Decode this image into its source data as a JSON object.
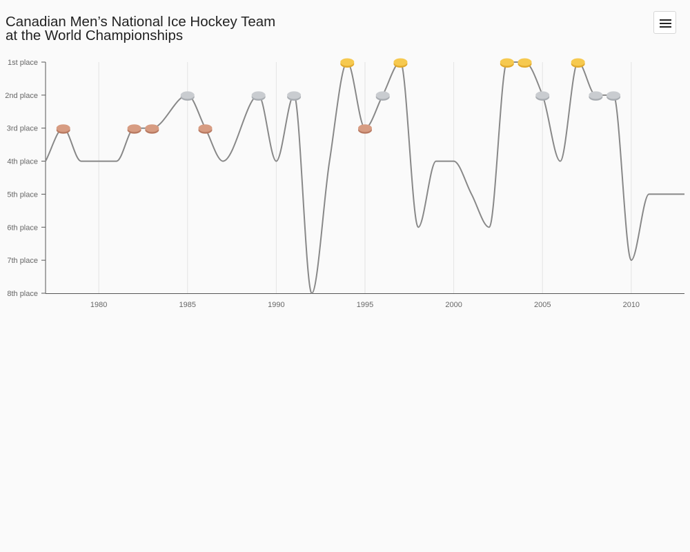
{
  "title_lines": [
    "Canadian Men’s National Ice Hockey Team",
    "at the World Championships"
  ],
  "menu": {
    "icon": "hamburger-menu-icon"
  },
  "colors": {
    "line": "#888888",
    "gold": "#f6c94f",
    "gold_edge": "#e2aa2c",
    "silver": "#c9ccd0",
    "silver_edge": "#a9adb2",
    "bronze": "#d79c82",
    "bronze_edge": "#b97a62",
    "grid": "#e3e3e3",
    "axis": "#555555"
  },
  "chart_data": {
    "type": "line",
    "title": "Canadian Men’s National Ice Hockey Team at the World Championships",
    "y_labels": [
      "1st place",
      "2nd place",
      "3rd place",
      "4th place",
      "5th place",
      "6th place",
      "7th place",
      "8th place"
    ],
    "x_ticks": [
      "1980",
      "1985",
      "1990",
      "1995",
      "2000",
      "2005",
      "2010"
    ],
    "x_tick_values": [
      1980,
      1985,
      1990,
      1995,
      2000,
      2005,
      2010
    ],
    "xlim": [
      1977,
      2013
    ],
    "ylim": [
      1,
      8
    ],
    "grid_x": true,
    "series": [
      {
        "points": [
          [
            1977,
            4
          ],
          [
            1978,
            3
          ],
          [
            1979,
            4
          ],
          [
            1981,
            4
          ],
          [
            1982,
            3
          ],
          [
            1983,
            3
          ],
          [
            1985,
            2
          ],
          [
            1986,
            3
          ],
          [
            1987,
            4
          ],
          [
            1989,
            2
          ],
          [
            1990,
            4
          ],
          [
            1991,
            2
          ],
          [
            1992,
            8
          ],
          [
            1993,
            4
          ],
          [
            1994,
            1
          ],
          [
            1995,
            3
          ],
          [
            1996,
            2
          ],
          [
            1997,
            1
          ],
          [
            1998,
            6
          ],
          [
            1999,
            4
          ],
          [
            2000,
            4
          ],
          [
            2001,
            5
          ],
          [
            2002,
            6
          ],
          [
            2003,
            1
          ],
          [
            2004,
            1
          ],
          [
            2005,
            2
          ],
          [
            2006,
            4
          ],
          [
            2007,
            1
          ],
          [
            2008,
            2
          ],
          [
            2009,
            2
          ],
          [
            2010,
            7
          ],
          [
            2011,
            5
          ],
          [
            2012,
            5
          ],
          [
            2013,
            5
          ]
        ]
      }
    ],
    "medals": [
      {
        "year": 1978,
        "type": "bronze"
      },
      {
        "year": 1982,
        "type": "bronze"
      },
      {
        "year": 1983,
        "type": "bronze"
      },
      {
        "year": 1985,
        "type": "silver"
      },
      {
        "year": 1986,
        "type": "bronze"
      },
      {
        "year": 1989,
        "type": "silver"
      },
      {
        "year": 1991,
        "type": "silver"
      },
      {
        "year": 1994,
        "type": "gold"
      },
      {
        "year": 1995,
        "type": "bronze"
      },
      {
        "year": 1996,
        "type": "silver"
      },
      {
        "year": 1997,
        "type": "gold"
      },
      {
        "year": 2003,
        "type": "gold"
      },
      {
        "year": 2004,
        "type": "gold"
      },
      {
        "year": 2005,
        "type": "silver"
      },
      {
        "year": 2007,
        "type": "gold"
      },
      {
        "year": 2008,
        "type": "silver"
      },
      {
        "year": 2009,
        "type": "silver"
      }
    ]
  }
}
